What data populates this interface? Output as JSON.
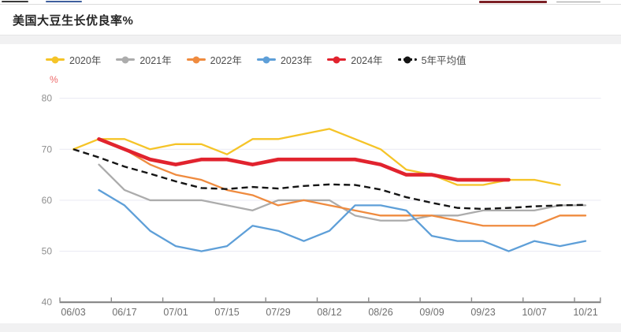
{
  "header": {
    "title": "美国大豆生长优良率%"
  },
  "chart_data": {
    "type": "line",
    "title": "美国大豆生长优良率%",
    "y_unit": "%",
    "ylim": [
      40,
      80
    ],
    "yticks": [
      40,
      50,
      60,
      70,
      80
    ],
    "grid": true,
    "legend_position": "top-left",
    "x_slots": [
      "06/03",
      "06/10",
      "06/17",
      "06/24",
      "07/01",
      "07/08",
      "07/15",
      "07/22",
      "07/29",
      "08/05",
      "08/12",
      "08/19",
      "08/26",
      "09/02",
      "09/09",
      "09/16",
      "09/23",
      "09/30",
      "10/07",
      "10/14",
      "10/21"
    ],
    "x_axis_labels": [
      "06/03",
      "06/17",
      "07/01",
      "07/15",
      "07/29",
      "08/12",
      "08/26",
      "09/09",
      "09/23",
      "10/07",
      "10/21"
    ],
    "series": [
      {
        "id": "2020",
        "name": "2020年",
        "color": "#F5C428",
        "width": 2.3,
        "dashed": false,
        "start_slot": 0,
        "values": [
          70,
          72,
          72,
          70,
          71,
          71,
          69,
          72,
          72,
          73,
          74,
          72,
          70,
          66,
          65,
          63,
          63,
          64,
          64,
          63
        ]
      },
      {
        "id": "2021",
        "name": "2021年",
        "color": "#ACACAC",
        "width": 2.3,
        "dashed": false,
        "start_slot": 1,
        "values": [
          67,
          62,
          60,
          60,
          60,
          59,
          58,
          60,
          60,
          60,
          57,
          56,
          56,
          57,
          57,
          58,
          58,
          58,
          59,
          59
        ]
      },
      {
        "id": "2022",
        "name": "2022年",
        "color": "#EF8B3F",
        "width": 2.3,
        "dashed": false,
        "start_slot": 2,
        "values": [
          70,
          67,
          65,
          64,
          62,
          61,
          59,
          60,
          59,
          58,
          57,
          57,
          57,
          56,
          55,
          55,
          55,
          57,
          57
        ]
      },
      {
        "id": "2023",
        "name": "2023年",
        "color": "#5E9FD8",
        "width": 2.3,
        "dashed": false,
        "start_slot": 1,
        "values": [
          62,
          59,
          54,
          51,
          50,
          51,
          55,
          54,
          52,
          54,
          59,
          59,
          58,
          53,
          52,
          52,
          50,
          52,
          51,
          52
        ]
      },
      {
        "id": "2024",
        "name": "2024年",
        "color": "#E1232E",
        "width": 4.6,
        "dashed": false,
        "start_slot": 1,
        "values": [
          72,
          70,
          68,
          67,
          68,
          68,
          67,
          68,
          68,
          68,
          68,
          67,
          65,
          65,
          64,
          64,
          64
        ]
      },
      {
        "id": "5yr-avg",
        "name": "5年平均值",
        "color": "#141414",
        "width": 2.4,
        "dashed": true,
        "start_slot": 0,
        "values": [
          70,
          68.4,
          66.6,
          65.2,
          63.7,
          62.4,
          62.2,
          62.6,
          62.3,
          62.8,
          63.1,
          63,
          62.1,
          60.6,
          59.5,
          58.5,
          58.3,
          58.5,
          58.8,
          59,
          59.1
        ]
      }
    ]
  }
}
